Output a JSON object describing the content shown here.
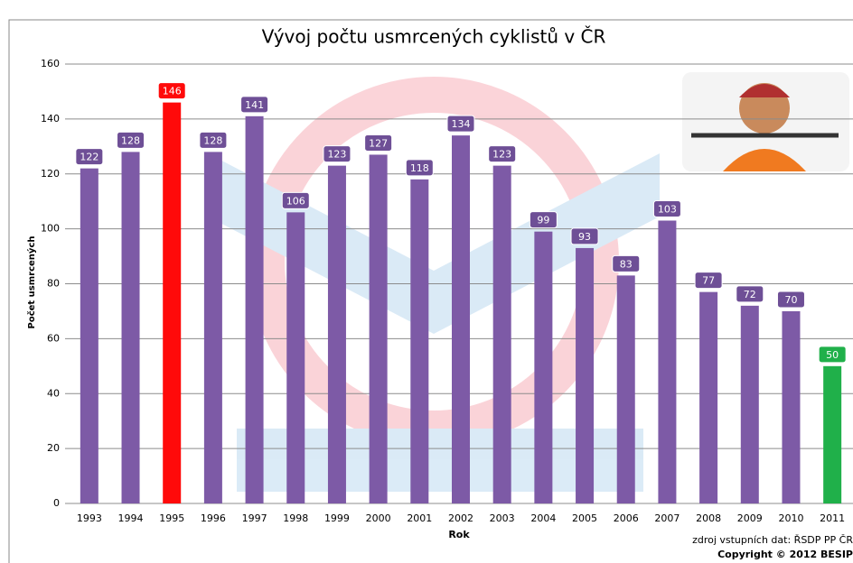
{
  "chart_data": {
    "type": "bar",
    "title": "Vývoj počtu usmrcených cyklistů v ČR",
    "x_label": "Rok",
    "y_label": "Počet usmrcených",
    "source": "zdroj vstupních dat: ŘSDP PP ČR",
    "copyright": "Copyright © 2012 BESIP",
    "categories": [
      "1993",
      "1994",
      "1995",
      "1996",
      "1997",
      "1998",
      "1999",
      "2000",
      "2001",
      "2002",
      "2003",
      "2004",
      "2005",
      "2006",
      "2007",
      "2008",
      "2009",
      "2010",
      "2011"
    ],
    "values": [
      122,
      128,
      146,
      128,
      141,
      106,
      123,
      127,
      118,
      134,
      123,
      99,
      93,
      83,
      103,
      77,
      72,
      70,
      50
    ],
    "colors": [
      "#7d5aa6",
      "#7d5aa6",
      "#ff0a0a",
      "#7d5aa6",
      "#7d5aa6",
      "#7d5aa6",
      "#7d5aa6",
      "#7d5aa6",
      "#7d5aa6",
      "#7d5aa6",
      "#7d5aa6",
      "#7d5aa6",
      "#7d5aa6",
      "#7d5aa6",
      "#7d5aa6",
      "#7d5aa6",
      "#7d5aa6",
      "#7d5aa6",
      "#20b04a"
    ],
    "ylim": [
      0,
      160
    ],
    "yticks": [
      0,
      20,
      40,
      60,
      80,
      100,
      120,
      140,
      160
    ],
    "grid": true
  }
}
